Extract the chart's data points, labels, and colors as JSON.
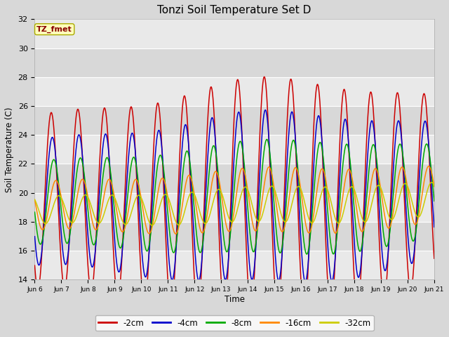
{
  "title": "Tonzi Soil Temperature Set D",
  "xlabel": "Time",
  "ylabel": "Soil Temperature (C)",
  "ylim": [
    14,
    32
  ],
  "yticks": [
    14,
    16,
    18,
    20,
    22,
    24,
    26,
    28,
    30,
    32
  ],
  "fig_bg": "#d8d8d8",
  "plot_bg": "#d8d8d8",
  "grid_color": "#ffffff",
  "line_colors": {
    "-2cm": "#cc0000",
    "-4cm": "#0000cc",
    "-8cm": "#00aa00",
    "-16cm": "#ff8800",
    "-32cm": "#cccc00"
  },
  "annotation_text": "TZ_fmet",
  "annotation_color": "#880000",
  "annotation_bg": "#ffffbb",
  "annotation_edge": "#aaaa00",
  "xtick_labels": [
    "Jun 6",
    "Jun 7",
    "Jun 8",
    "Jun 9",
    "Jun 10",
    "Jun 11",
    "Jun 12",
    "Jun 13",
    "Jun 14",
    "Jun 15",
    "Jun 16",
    "Jun 17",
    "Jun 18",
    "Jun 19",
    "Jun 20",
    "Jun 21"
  ],
  "num_days": 15
}
